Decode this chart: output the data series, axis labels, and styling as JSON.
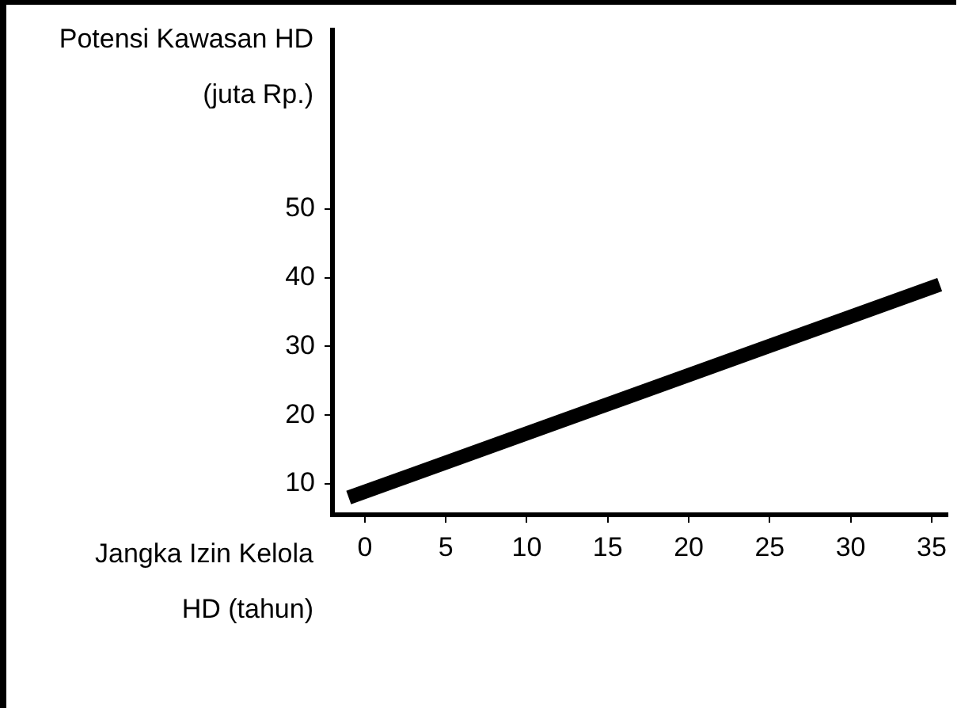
{
  "chart_data": {
    "type": "line",
    "xlabel": "Jangka Izin Kelola HD (tahun)",
    "ylabel": "Potensi Kawasan HD (juta Rp.)",
    "x": [
      -1,
      35.5
    ],
    "series": [
      {
        "color": "#000000",
        "values": [
          8,
          39
        ]
      }
    ],
    "xlim": [
      -2,
      36
    ],
    "ylim": [
      5.5,
      76
    ],
    "xticks": [
      0,
      5,
      10,
      15,
      20,
      25,
      30,
      35
    ],
    "yticks": [
      10,
      20,
      30,
      40,
      50
    ],
    "grid": false,
    "legend": false,
    "marker": "none",
    "line_style": "solid"
  }
}
